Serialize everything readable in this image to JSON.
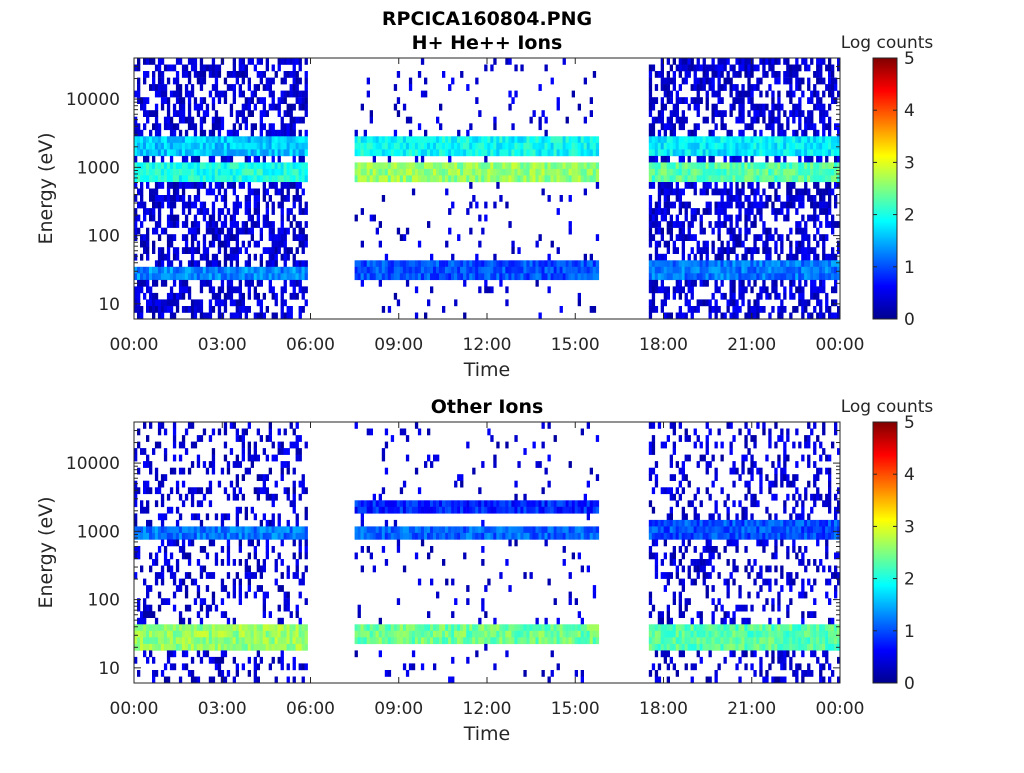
{
  "figure": {
    "title_line1": "RPCICA160804.PNG",
    "title_line2": "H+ He++ Ions"
  },
  "chart_data": [
    {
      "type": "heatmap",
      "title": "H+ He++ Ions",
      "xlabel": "Time",
      "ylabel": "Energy (eV)",
      "x_ticks": [
        "00:00",
        "03:00",
        "06:00",
        "09:00",
        "12:00",
        "15:00",
        "18:00",
        "21:00",
        "00:00"
      ],
      "x_range_hours": [
        0,
        24
      ],
      "y_scale": "log",
      "y_ticks": [
        "10",
        "100",
        "1000",
        "10000"
      ],
      "y_range": [
        6,
        40000
      ],
      "colorbar": {
        "label": "Log counts",
        "ticks": [
          "0",
          "1",
          "2",
          "3",
          "4",
          "5"
        ],
        "range": [
          0,
          5
        ],
        "colormap": "jet"
      },
      "data_segments_hours": [
        [
          0,
          5.9
        ],
        [
          7.5,
          15.8
        ],
        [
          17.5,
          24
        ]
      ],
      "bands": [
        {
          "x": [
            0,
            5.9
          ],
          "energy": [
            600,
            1300
          ],
          "level": 2.0
        },
        {
          "x": [
            0,
            5.9
          ],
          "energy": [
            1500,
            2600
          ],
          "level": 1.6
        },
        {
          "x": [
            0,
            5.9
          ],
          "energy": [
            22,
            38
          ],
          "level": 1.3
        },
        {
          "x": [
            7.5,
            15.8
          ],
          "energy": [
            600,
            1300
          ],
          "level": 2.6
        },
        {
          "x": [
            7.5,
            15.8
          ],
          "energy": [
            1500,
            2800
          ],
          "level": 1.9
        },
        {
          "x": [
            7.5,
            15.8
          ],
          "energy": [
            22,
            45
          ],
          "level": 1.0
        },
        {
          "x": [
            17.5,
            24
          ],
          "energy": [
            600,
            1300
          ],
          "level": 2.3
        },
        {
          "x": [
            17.5,
            24
          ],
          "energy": [
            1500,
            2700
          ],
          "level": 1.8
        },
        {
          "x": [
            17.5,
            24
          ],
          "energy": [
            22,
            40
          ],
          "level": 1.2
        }
      ]
    },
    {
      "type": "heatmap",
      "title": "Other Ions",
      "xlabel": "Time",
      "ylabel": "Energy (eV)",
      "x_ticks": [
        "00:00",
        "03:00",
        "06:00",
        "09:00",
        "12:00",
        "15:00",
        "18:00",
        "21:00",
        "00:00"
      ],
      "x_range_hours": [
        0,
        24
      ],
      "y_scale": "log",
      "y_ticks": [
        "10",
        "100",
        "1000",
        "10000"
      ],
      "y_range": [
        6,
        40000
      ],
      "colorbar": {
        "label": "Log counts",
        "ticks": [
          "0",
          "1",
          "2",
          "3",
          "4",
          "5"
        ],
        "range": [
          0,
          5
        ],
        "colormap": "jet"
      },
      "data_segments_hours": [
        [
          0,
          5.9
        ],
        [
          7.5,
          15.8
        ],
        [
          17.5,
          24
        ]
      ],
      "bands": [
        {
          "x": [
            0,
            5.9
          ],
          "energy": [
            18,
            40
          ],
          "level": 2.6
        },
        {
          "x": [
            0,
            5.9
          ],
          "energy": [
            700,
            1300
          ],
          "level": 1.2
        },
        {
          "x": [
            7.5,
            15.8
          ],
          "energy": [
            22,
            45
          ],
          "level": 2.4
        },
        {
          "x": [
            7.5,
            15.8
          ],
          "energy": [
            800,
            1300
          ],
          "level": 1.1
        },
        {
          "x": [
            7.5,
            15.8
          ],
          "energy": [
            1800,
            2600
          ],
          "level": 0.8
        },
        {
          "x": [
            17.5,
            24
          ],
          "energy": [
            20,
            42
          ],
          "level": 2.3
        },
        {
          "x": [
            17.5,
            24
          ],
          "energy": [
            800,
            1400
          ],
          "level": 1.0
        }
      ]
    }
  ]
}
